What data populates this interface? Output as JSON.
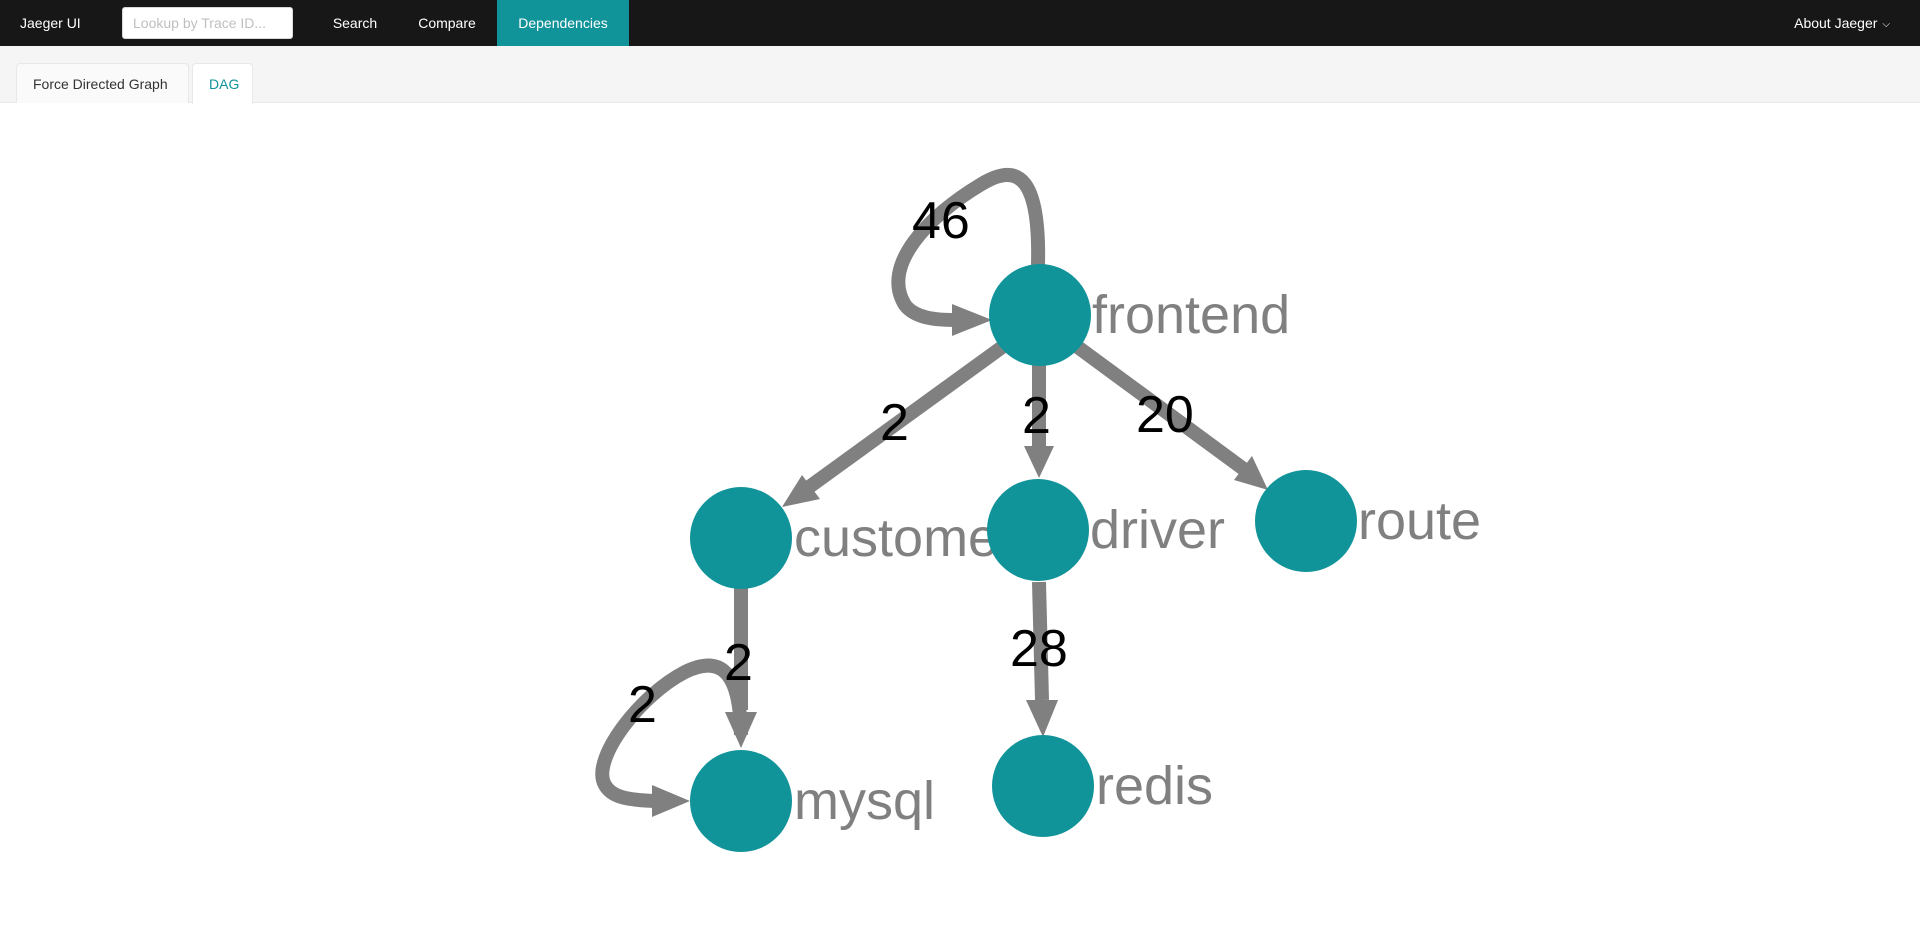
{
  "header": {
    "brand": "Jaeger UI",
    "lookup_placeholder": "Lookup by Trace ID...",
    "nav": {
      "search": "Search",
      "compare": "Compare",
      "dependencies": "Dependencies"
    },
    "about": "About Jaeger"
  },
  "tabs": {
    "force": "Force Directed Graph",
    "dag": "DAG",
    "active": "DAG"
  },
  "colors": {
    "node": "#11939a",
    "edge": "#808080",
    "active_nav": "#11939a"
  },
  "graph": {
    "nodes": {
      "frontend": "frontend",
      "customer": "customer",
      "driver": "driver",
      "route": "route",
      "mysql": "mysql",
      "redis": "redis"
    },
    "edges": {
      "frontend_self": "46",
      "frontend_customer": "2",
      "frontend_driver": "2",
      "frontend_route": "20",
      "customer_mysql": "2",
      "mysql_self": "2",
      "driver_redis": "28"
    }
  }
}
